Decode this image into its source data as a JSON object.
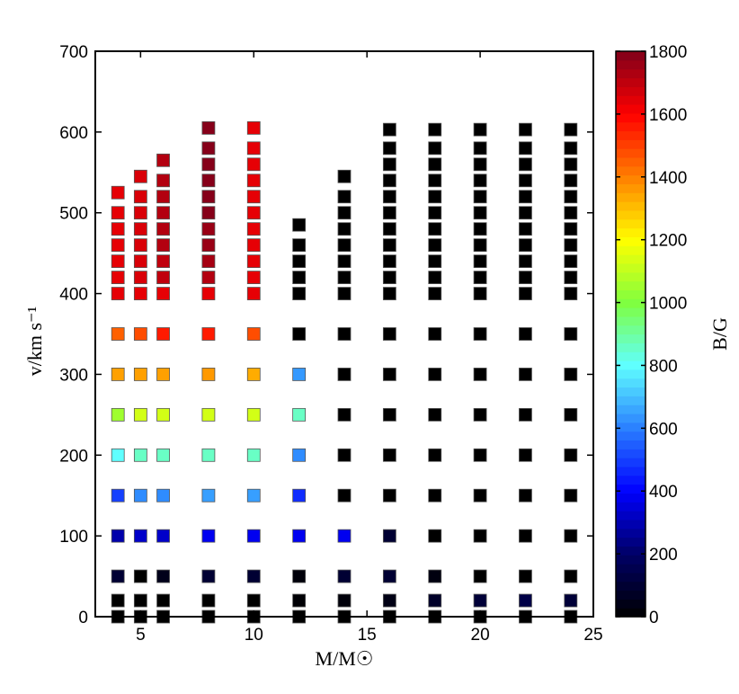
{
  "chart_data": {
    "type": "heatmap",
    "xlabel": "M/M☉",
    "ylabel": "v/km s⁻¹",
    "colorbar_label": "B/G",
    "xlim": [
      3,
      25
    ],
    "ylim": [
      0,
      700
    ],
    "xticks": [
      5,
      10,
      15,
      20,
      25
    ],
    "yticks": [
      0,
      100,
      200,
      300,
      400,
      500,
      600,
      700
    ],
    "colorbar_range": [
      0,
      1800
    ],
    "colorbar_ticks": [
      0,
      200,
      400,
      600,
      800,
      1000,
      1200,
      1400,
      1600,
      1800
    ],
    "colormap": "jet-dark-start",
    "colormap_stops": [
      "#000000",
      "#000066",
      "#0000ff",
      "#2a7fff",
      "#5fffff",
      "#7fff3f",
      "#ffff00",
      "#ff8000",
      "#ff0000",
      "#80001a"
    ],
    "points": [
      {
        "x": 4,
        "y": 0,
        "b": 0
      },
      {
        "x": 4,
        "y": 20,
        "b": 0
      },
      {
        "x": 4,
        "y": 50,
        "b": 100
      },
      {
        "x": 4,
        "y": 100,
        "b": 290
      },
      {
        "x": 4,
        "y": 150,
        "b": 500
      },
      {
        "x": 4,
        "y": 200,
        "b": 800
      },
      {
        "x": 4,
        "y": 250,
        "b": 1050
      },
      {
        "x": 4,
        "y": 300,
        "b": 1350
      },
      {
        "x": 4,
        "y": 350,
        "b": 1450
      },
      {
        "x": 4,
        "y": 400,
        "b": 1640
      },
      {
        "x": 4,
        "y": 420,
        "b": 1640
      },
      {
        "x": 4,
        "y": 440,
        "b": 1640
      },
      {
        "x": 4,
        "y": 460,
        "b": 1640
      },
      {
        "x": 4,
        "y": 480,
        "b": 1640
      },
      {
        "x": 4,
        "y": 500,
        "b": 1640
      },
      {
        "x": 4,
        "y": 525,
        "b": 1640
      },
      {
        "x": 5,
        "y": 0,
        "b": 0
      },
      {
        "x": 5,
        "y": 20,
        "b": 0
      },
      {
        "x": 5,
        "y": 50,
        "b": 0
      },
      {
        "x": 5,
        "y": 100,
        "b": 330
      },
      {
        "x": 5,
        "y": 150,
        "b": 620
      },
      {
        "x": 5,
        "y": 200,
        "b": 860
      },
      {
        "x": 5,
        "y": 250,
        "b": 1130
      },
      {
        "x": 5,
        "y": 300,
        "b": 1350
      },
      {
        "x": 5,
        "y": 350,
        "b": 1480
      },
      {
        "x": 5,
        "y": 400,
        "b": 1640
      },
      {
        "x": 5,
        "y": 420,
        "b": 1660
      },
      {
        "x": 5,
        "y": 440,
        "b": 1660
      },
      {
        "x": 5,
        "y": 460,
        "b": 1660
      },
      {
        "x": 5,
        "y": 480,
        "b": 1660
      },
      {
        "x": 5,
        "y": 500,
        "b": 1660
      },
      {
        "x": 5,
        "y": 520,
        "b": 1660
      },
      {
        "x": 5,
        "y": 545,
        "b": 1660
      },
      {
        "x": 6,
        "y": 0,
        "b": 0
      },
      {
        "x": 6,
        "y": 20,
        "b": 0
      },
      {
        "x": 6,
        "y": 50,
        "b": 50
      },
      {
        "x": 6,
        "y": 100,
        "b": 330
      },
      {
        "x": 6,
        "y": 150,
        "b": 620
      },
      {
        "x": 6,
        "y": 200,
        "b": 860
      },
      {
        "x": 6,
        "y": 250,
        "b": 1130
      },
      {
        "x": 6,
        "y": 300,
        "b": 1350
      },
      {
        "x": 6,
        "y": 350,
        "b": 1560
      },
      {
        "x": 6,
        "y": 400,
        "b": 1640
      },
      {
        "x": 6,
        "y": 420,
        "b": 1700
      },
      {
        "x": 6,
        "y": 440,
        "b": 1700
      },
      {
        "x": 6,
        "y": 460,
        "b": 1720
      },
      {
        "x": 6,
        "y": 480,
        "b": 1720
      },
      {
        "x": 6,
        "y": 500,
        "b": 1720
      },
      {
        "x": 6,
        "y": 520,
        "b": 1720
      },
      {
        "x": 6,
        "y": 540,
        "b": 1720
      },
      {
        "x": 6,
        "y": 565,
        "b": 1720
      },
      {
        "x": 8,
        "y": 0,
        "b": 0
      },
      {
        "x": 8,
        "y": 20,
        "b": 0
      },
      {
        "x": 8,
        "y": 50,
        "b": 100
      },
      {
        "x": 8,
        "y": 100,
        "b": 380
      },
      {
        "x": 8,
        "y": 150,
        "b": 650
      },
      {
        "x": 8,
        "y": 200,
        "b": 860
      },
      {
        "x": 8,
        "y": 250,
        "b": 1130
      },
      {
        "x": 8,
        "y": 300,
        "b": 1360
      },
      {
        "x": 8,
        "y": 350,
        "b": 1560
      },
      {
        "x": 8,
        "y": 400,
        "b": 1640
      },
      {
        "x": 8,
        "y": 420,
        "b": 1720
      },
      {
        "x": 8,
        "y": 440,
        "b": 1740
      },
      {
        "x": 8,
        "y": 460,
        "b": 1760
      },
      {
        "x": 8,
        "y": 480,
        "b": 1760
      },
      {
        "x": 8,
        "y": 500,
        "b": 1790
      },
      {
        "x": 8,
        "y": 520,
        "b": 1790
      },
      {
        "x": 8,
        "y": 540,
        "b": 1790
      },
      {
        "x": 8,
        "y": 560,
        "b": 1790
      },
      {
        "x": 8,
        "y": 580,
        "b": 1790
      },
      {
        "x": 8,
        "y": 605,
        "b": 1790
      },
      {
        "x": 10,
        "y": 0,
        "b": 0
      },
      {
        "x": 10,
        "y": 20,
        "b": 0
      },
      {
        "x": 10,
        "y": 50,
        "b": 100
      },
      {
        "x": 10,
        "y": 100,
        "b": 380
      },
      {
        "x": 10,
        "y": 150,
        "b": 650
      },
      {
        "x": 10,
        "y": 200,
        "b": 860
      },
      {
        "x": 10,
        "y": 250,
        "b": 1130
      },
      {
        "x": 10,
        "y": 300,
        "b": 1330
      },
      {
        "x": 10,
        "y": 350,
        "b": 1480
      },
      {
        "x": 10,
        "y": 400,
        "b": 1640
      },
      {
        "x": 10,
        "y": 420,
        "b": 1640
      },
      {
        "x": 10,
        "y": 440,
        "b": 1640
      },
      {
        "x": 10,
        "y": 460,
        "b": 1640
      },
      {
        "x": 10,
        "y": 480,
        "b": 1640
      },
      {
        "x": 10,
        "y": 500,
        "b": 1640
      },
      {
        "x": 10,
        "y": 520,
        "b": 1640
      },
      {
        "x": 10,
        "y": 540,
        "b": 1640
      },
      {
        "x": 10,
        "y": 560,
        "b": 1640
      },
      {
        "x": 10,
        "y": 580,
        "b": 1640
      },
      {
        "x": 10,
        "y": 605,
        "b": 1640
      },
      {
        "x": 12,
        "y": 0,
        "b": 0
      },
      {
        "x": 12,
        "y": 20,
        "b": 10
      },
      {
        "x": 12,
        "y": 50,
        "b": 20
      },
      {
        "x": 12,
        "y": 100,
        "b": 380
      },
      {
        "x": 12,
        "y": 150,
        "b": 470
      },
      {
        "x": 12,
        "y": 200,
        "b": 620
      },
      {
        "x": 12,
        "y": 250,
        "b": 860
      },
      {
        "x": 12,
        "y": 300,
        "b": 640
      },
      {
        "x": 12,
        "y": 350,
        "b": 0
      },
      {
        "x": 12,
        "y": 400,
        "b": 0
      },
      {
        "x": 12,
        "y": 420,
        "b": 0
      },
      {
        "x": 12,
        "y": 440,
        "b": 0
      },
      {
        "x": 12,
        "y": 460,
        "b": 0
      },
      {
        "x": 12,
        "y": 485,
        "b": 0
      },
      {
        "x": 14,
        "y": 0,
        "b": 0
      },
      {
        "x": 14,
        "y": 20,
        "b": 20
      },
      {
        "x": 14,
        "y": 50,
        "b": 100
      },
      {
        "x": 14,
        "y": 100,
        "b": 380
      },
      {
        "x": 14,
        "y": 150,
        "b": 0
      },
      {
        "x": 14,
        "y": 200,
        "b": 0
      },
      {
        "x": 14,
        "y": 250,
        "b": 0
      },
      {
        "x": 14,
        "y": 300,
        "b": 0
      },
      {
        "x": 14,
        "y": 350,
        "b": 0
      },
      {
        "x": 14,
        "y": 400,
        "b": 0
      },
      {
        "x": 14,
        "y": 420,
        "b": 0
      },
      {
        "x": 14,
        "y": 440,
        "b": 0
      },
      {
        "x": 14,
        "y": 460,
        "b": 0
      },
      {
        "x": 14,
        "y": 480,
        "b": 0
      },
      {
        "x": 14,
        "y": 500,
        "b": 0
      },
      {
        "x": 14,
        "y": 520,
        "b": 0
      },
      {
        "x": 14,
        "y": 545,
        "b": 0
      },
      {
        "x": 16,
        "y": 0,
        "b": 0
      },
      {
        "x": 16,
        "y": 20,
        "b": 40
      },
      {
        "x": 16,
        "y": 50,
        "b": 100
      },
      {
        "x": 16,
        "y": 100,
        "b": 100
      },
      {
        "x": 16,
        "y": 150,
        "b": 0
      },
      {
        "x": 16,
        "y": 200,
        "b": 0
      },
      {
        "x": 16,
        "y": 250,
        "b": 0
      },
      {
        "x": 16,
        "y": 300,
        "b": 0
      },
      {
        "x": 16,
        "y": 350,
        "b": 0
      },
      {
        "x": 16,
        "y": 400,
        "b": 0
      },
      {
        "x": 16,
        "y": 420,
        "b": 0
      },
      {
        "x": 16,
        "y": 440,
        "b": 0
      },
      {
        "x": 16,
        "y": 460,
        "b": 0
      },
      {
        "x": 16,
        "y": 480,
        "b": 0
      },
      {
        "x": 16,
        "y": 500,
        "b": 0
      },
      {
        "x": 16,
        "y": 520,
        "b": 0
      },
      {
        "x": 16,
        "y": 540,
        "b": 0
      },
      {
        "x": 16,
        "y": 560,
        "b": 0
      },
      {
        "x": 16,
        "y": 580,
        "b": 0
      },
      {
        "x": 16,
        "y": 603,
        "b": 0
      },
      {
        "x": 18,
        "y": 0,
        "b": 0
      },
      {
        "x": 18,
        "y": 20,
        "b": 80
      },
      {
        "x": 18,
        "y": 50,
        "b": 30
      },
      {
        "x": 18,
        "y": 100,
        "b": 0
      },
      {
        "x": 18,
        "y": 150,
        "b": 0
      },
      {
        "x": 18,
        "y": 200,
        "b": 0
      },
      {
        "x": 18,
        "y": 250,
        "b": 0
      },
      {
        "x": 18,
        "y": 300,
        "b": 0
      },
      {
        "x": 18,
        "y": 350,
        "b": 0
      },
      {
        "x": 18,
        "y": 400,
        "b": 0
      },
      {
        "x": 18,
        "y": 420,
        "b": 0
      },
      {
        "x": 18,
        "y": 440,
        "b": 0
      },
      {
        "x": 18,
        "y": 460,
        "b": 0
      },
      {
        "x": 18,
        "y": 480,
        "b": 0
      },
      {
        "x": 18,
        "y": 500,
        "b": 0
      },
      {
        "x": 18,
        "y": 520,
        "b": 0
      },
      {
        "x": 18,
        "y": 540,
        "b": 0
      },
      {
        "x": 18,
        "y": 560,
        "b": 0
      },
      {
        "x": 18,
        "y": 580,
        "b": 0
      },
      {
        "x": 18,
        "y": 603,
        "b": 0
      },
      {
        "x": 20,
        "y": 0,
        "b": 0
      },
      {
        "x": 20,
        "y": 20,
        "b": 110
      },
      {
        "x": 20,
        "y": 50,
        "b": 0
      },
      {
        "x": 20,
        "y": 100,
        "b": 0
      },
      {
        "x": 20,
        "y": 150,
        "b": 0
      },
      {
        "x": 20,
        "y": 200,
        "b": 0
      },
      {
        "x": 20,
        "y": 250,
        "b": 0
      },
      {
        "x": 20,
        "y": 300,
        "b": 0
      },
      {
        "x": 20,
        "y": 350,
        "b": 0
      },
      {
        "x": 20,
        "y": 400,
        "b": 0
      },
      {
        "x": 20,
        "y": 420,
        "b": 0
      },
      {
        "x": 20,
        "y": 440,
        "b": 0
      },
      {
        "x": 20,
        "y": 460,
        "b": 0
      },
      {
        "x": 20,
        "y": 480,
        "b": 0
      },
      {
        "x": 20,
        "y": 500,
        "b": 0
      },
      {
        "x": 20,
        "y": 520,
        "b": 0
      },
      {
        "x": 20,
        "y": 540,
        "b": 0
      },
      {
        "x": 20,
        "y": 560,
        "b": 0
      },
      {
        "x": 20,
        "y": 580,
        "b": 0
      },
      {
        "x": 20,
        "y": 603,
        "b": 0
      },
      {
        "x": 22,
        "y": 0,
        "b": 0
      },
      {
        "x": 22,
        "y": 20,
        "b": 140
      },
      {
        "x": 22,
        "y": 50,
        "b": 0
      },
      {
        "x": 22,
        "y": 100,
        "b": 0
      },
      {
        "x": 22,
        "y": 150,
        "b": 0
      },
      {
        "x": 22,
        "y": 200,
        "b": 0
      },
      {
        "x": 22,
        "y": 250,
        "b": 0
      },
      {
        "x": 22,
        "y": 300,
        "b": 0
      },
      {
        "x": 22,
        "y": 350,
        "b": 0
      },
      {
        "x": 22,
        "y": 400,
        "b": 0
      },
      {
        "x": 22,
        "y": 420,
        "b": 0
      },
      {
        "x": 22,
        "y": 440,
        "b": 0
      },
      {
        "x": 22,
        "y": 460,
        "b": 0
      },
      {
        "x": 22,
        "y": 480,
        "b": 0
      },
      {
        "x": 22,
        "y": 500,
        "b": 0
      },
      {
        "x": 22,
        "y": 520,
        "b": 0
      },
      {
        "x": 22,
        "y": 540,
        "b": 0
      },
      {
        "x": 22,
        "y": 560,
        "b": 0
      },
      {
        "x": 22,
        "y": 580,
        "b": 0
      },
      {
        "x": 22,
        "y": 603,
        "b": 0
      },
      {
        "x": 24,
        "y": 0,
        "b": 0
      },
      {
        "x": 24,
        "y": 20,
        "b": 110
      },
      {
        "x": 24,
        "y": 50,
        "b": 0
      },
      {
        "x": 24,
        "y": 100,
        "b": 0
      },
      {
        "x": 24,
        "y": 150,
        "b": 0
      },
      {
        "x": 24,
        "y": 200,
        "b": 0
      },
      {
        "x": 24,
        "y": 250,
        "b": 0
      },
      {
        "x": 24,
        "y": 300,
        "b": 0
      },
      {
        "x": 24,
        "y": 350,
        "b": 0
      },
      {
        "x": 24,
        "y": 400,
        "b": 0
      },
      {
        "x": 24,
        "y": 420,
        "b": 0
      },
      {
        "x": 24,
        "y": 440,
        "b": 0
      },
      {
        "x": 24,
        "y": 460,
        "b": 0
      },
      {
        "x": 24,
        "y": 480,
        "b": 0
      },
      {
        "x": 24,
        "y": 500,
        "b": 0
      },
      {
        "x": 24,
        "y": 520,
        "b": 0
      },
      {
        "x": 24,
        "y": 540,
        "b": 0
      },
      {
        "x": 24,
        "y": 560,
        "b": 0
      },
      {
        "x": 24,
        "y": 580,
        "b": 0
      },
      {
        "x": 24,
        "y": 603,
        "b": 0
      }
    ]
  }
}
